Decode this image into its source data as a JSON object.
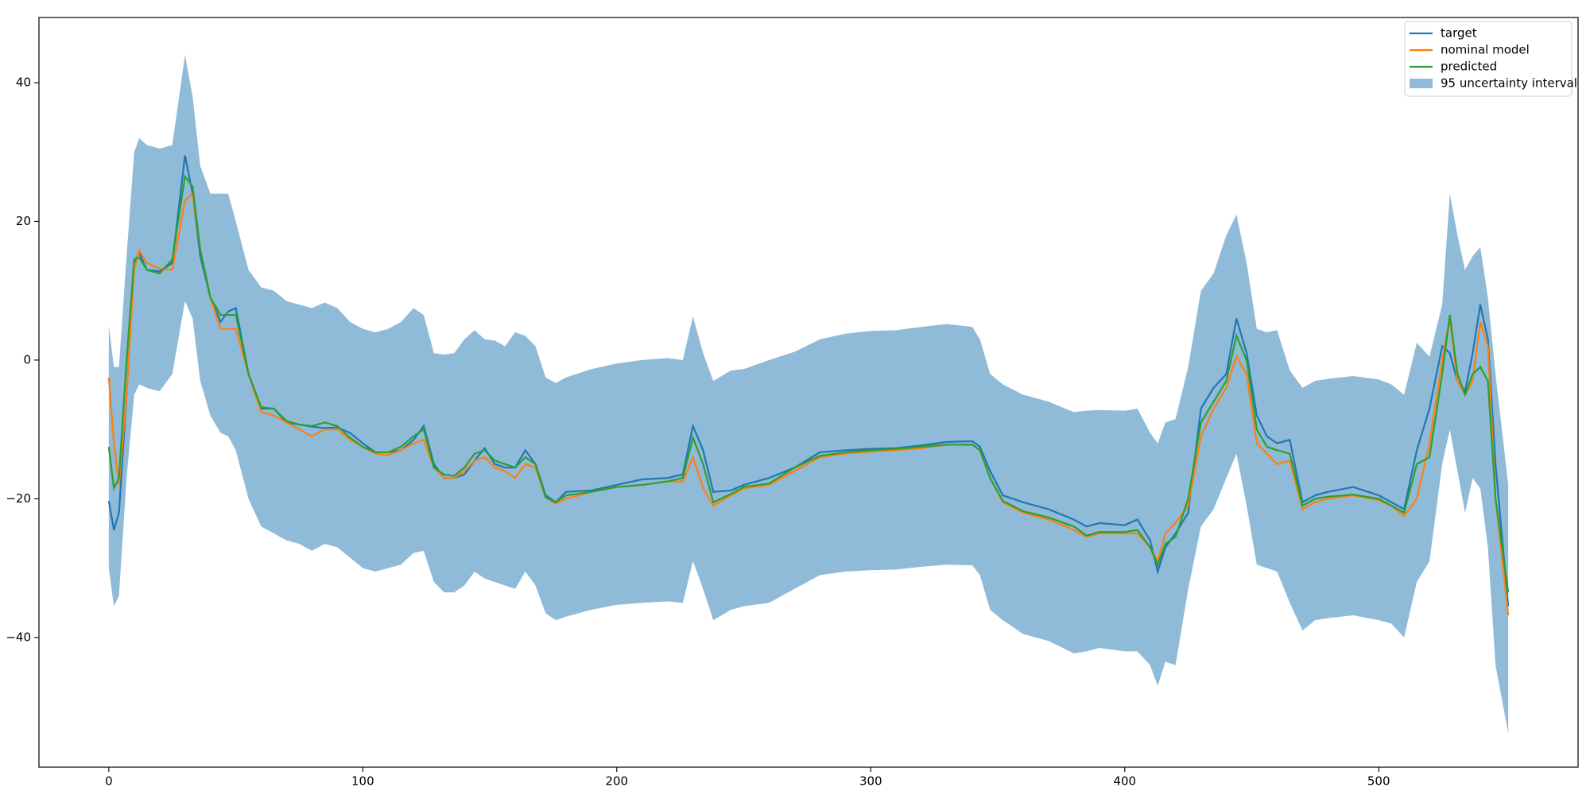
{
  "chart_data": {
    "type": "line",
    "x": [
      0,
      2,
      4,
      7,
      10,
      12,
      15,
      20,
      25,
      30,
      33,
      36,
      40,
      44,
      47,
      50,
      55,
      60,
      65,
      70,
      75,
      80,
      85,
      90,
      95,
      100,
      105,
      110,
      115,
      120,
      124,
      128,
      132,
      136,
      140,
      144,
      148,
      152,
      156,
      160,
      164,
      168,
      172,
      176,
      180,
      190,
      200,
      210,
      220,
      226,
      230,
      234,
      238,
      245,
      250,
      260,
      270,
      280,
      290,
      300,
      310,
      320,
      330,
      340,
      343,
      347,
      352,
      360,
      370,
      380,
      385,
      390,
      400,
      405,
      410,
      413,
      416,
      420,
      425,
      430,
      435,
      440,
      444,
      448,
      452,
      456,
      460,
      465,
      470,
      475,
      480,
      490,
      500,
      505,
      510,
      515,
      520,
      525,
      528,
      531,
      534,
      537,
      540,
      543,
      546,
      551
    ],
    "series": [
      {
        "name": "target",
        "color": "#1f77b4",
        "values": [
          -20.3,
          -24.5,
          -22,
          -5,
          14,
          15.5,
          13,
          12.8,
          14,
          29.5,
          24,
          15,
          9,
          5.5,
          7,
          7.5,
          -2,
          -7,
          -7,
          -9,
          -9.3,
          -9.6,
          -9.8,
          -9.7,
          -10.5,
          -12,
          -13.3,
          -13.3,
          -13,
          -11.5,
          -9.5,
          -15,
          -17,
          -17,
          -16.5,
          -14.5,
          -12.7,
          -15,
          -15.5,
          -15.5,
          -13,
          -15,
          -19.5,
          -20.5,
          -19,
          -18.8,
          -18,
          -17.2,
          -17,
          -16.5,
          -9.5,
          -13,
          -19,
          -18.8,
          -18,
          -17,
          -15.5,
          -13.3,
          -13,
          -12.8,
          -12.7,
          -12.3,
          -11.8,
          -11.7,
          -12.5,
          -16,
          -19.5,
          -20.5,
          -21.5,
          -23,
          -24,
          -23.5,
          -23.8,
          -23,
          -26,
          -30.5,
          -27,
          -25,
          -22,
          -7,
          -4,
          -2,
          6,
          1,
          -8,
          -11,
          -12,
          -11.5,
          -20.5,
          -19.5,
          -19,
          -18.3,
          -19.5,
          -20.5,
          -21.5,
          -13,
          -7,
          2,
          1,
          -3,
          -4.5,
          1,
          8,
          3,
          -15,
          -35.5
        ]
      },
      {
        "name": "nominal model",
        "color": "#ff7f0e",
        "values": [
          -2.5,
          -12,
          -18,
          -5,
          13,
          15.8,
          14,
          13.2,
          13,
          23,
          24,
          16,
          9,
          4.5,
          4.5,
          4.5,
          -2,
          -7.5,
          -8,
          -9,
          -10,
          -11,
          -10,
          -10,
          -11.5,
          -12.5,
          -13.5,
          -13.7,
          -13,
          -12,
          -11.5,
          -15.5,
          -17,
          -17,
          -16,
          -14.5,
          -14,
          -15.5,
          -16,
          -17,
          -15,
          -15.5,
          -19.8,
          -20.7,
          -20,
          -19,
          -18.3,
          -18,
          -17.5,
          -17.5,
          -14,
          -18.5,
          -21,
          -19.5,
          -18.5,
          -18,
          -16,
          -14,
          -13.5,
          -13.2,
          -13,
          -12.7,
          -12.2,
          -12.2,
          -13,
          -17,
          -20.5,
          -22,
          -23,
          -24.5,
          -25.5,
          -25,
          -25,
          -25,
          -27,
          -29,
          -25,
          -23.5,
          -21,
          -11,
          -7,
          -4,
          0.5,
          -2,
          -12,
          -13.5,
          -15,
          -14.5,
          -21.5,
          -20.5,
          -20,
          -19.5,
          -20.2,
          -21,
          -22.5,
          -20,
          -12,
          0,
          6,
          -3,
          -5,
          -3,
          5.5,
          2,
          -20,
          -36.8
        ]
      },
      {
        "name": "predicted",
        "color": "#2ca02c",
        "values": [
          -12.5,
          -18.5,
          -17,
          0,
          14.5,
          14.8,
          13,
          12.5,
          14.5,
          26.5,
          25,
          16,
          9,
          6.5,
          6.5,
          6.5,
          -2,
          -6.8,
          -7,
          -8.8,
          -9.3,
          -9.5,
          -9,
          -9.5,
          -11.2,
          -12.5,
          -13.3,
          -13.3,
          -12.5,
          -11,
          -10,
          -15.5,
          -16.5,
          -16.7,
          -15.5,
          -13.5,
          -13,
          -14.5,
          -15,
          -15.5,
          -14,
          -15,
          -19.8,
          -20.5,
          -19.5,
          -19,
          -18.3,
          -18,
          -17.5,
          -17,
          -11.2,
          -15,
          -20.5,
          -19.3,
          -18.3,
          -17.8,
          -15.5,
          -13.8,
          -13.3,
          -13,
          -12.8,
          -12.5,
          -12.2,
          -12.2,
          -13,
          -17,
          -20.3,
          -21.8,
          -22.7,
          -24,
          -25.3,
          -24.8,
          -24.8,
          -24.5,
          -27,
          -29.5,
          -26.5,
          -25.5,
          -20,
          -9,
          -6,
          -3,
          3.5,
          0,
          -10,
          -12.5,
          -13,
          -13.5,
          -21,
          -20,
          -19.7,
          -19.4,
          -20,
          -21,
          -22,
          -15,
          -14,
          -2,
          6.5,
          -2,
          -5,
          -2,
          -1,
          -3,
          -20,
          -33.5
        ]
      }
    ],
    "band": {
      "name": "95 uncertainty interval",
      "color": "#1f77b4",
      "alpha": 0.5,
      "lower": [
        -30,
        -35.5,
        -34,
        -17,
        -5,
        -3.5,
        -4,
        -4.5,
        -2,
        8.5,
        6,
        -3,
        -8,
        -10.5,
        -11,
        -13,
        -20,
        -24,
        -25,
        -26,
        -26.5,
        -27.5,
        -26.5,
        -27,
        -28.5,
        -30,
        -30.5,
        -30,
        -29.5,
        -27.8,
        -27.5,
        -32,
        -33.5,
        -33.5,
        -32.5,
        -30.5,
        -31.5,
        -32,
        -32.5,
        -33,
        -30.5,
        -32.5,
        -36.5,
        -37.5,
        -37,
        -36,
        -35.3,
        -35,
        -34.8,
        -35,
        -29,
        -33,
        -37.5,
        -36,
        -35.5,
        -35,
        -33,
        -31,
        -30.5,
        -30.3,
        -30.2,
        -29.8,
        -29.5,
        -29.6,
        -31,
        -36,
        -37.5,
        -39.5,
        -40.5,
        -42.3,
        -42,
        -41.5,
        -42,
        -42,
        -44,
        -47,
        -43.5,
        -44,
        -33,
        -24,
        -21.5,
        -17,
        -13.5,
        -21,
        -29.5,
        -30,
        -30.5,
        -35,
        -39,
        -37.5,
        -37.2,
        -36.8,
        -37.5,
        -38,
        -40,
        -32,
        -29,
        -15,
        -10,
        -16,
        -22,
        -17,
        -18.5,
        -27,
        -44,
        -53.8
      ],
      "upper": [
        5,
        -1,
        -1,
        15,
        30,
        32,
        31,
        30.5,
        31,
        44,
        38,
        28,
        24,
        24,
        24,
        20,
        13,
        10.5,
        10,
        8.5,
        8,
        7.5,
        8.3,
        7.5,
        5.5,
        4.5,
        4,
        4.5,
        5.5,
        7.5,
        6.5,
        1,
        0.8,
        1,
        3,
        4.3,
        3,
        2.8,
        2,
        4,
        3.5,
        2,
        -2.5,
        -3.3,
        -2.5,
        -1.3,
        -0.5,
        0,
        0.3,
        0,
        6.3,
        1,
        -3,
        -1.5,
        -1.3,
        0,
        1.2,
        3,
        3.8,
        4.2,
        4.3,
        4.8,
        5.2,
        4.8,
        3,
        -2,
        -3.5,
        -5,
        -6,
        -7.5,
        -7.3,
        -7.2,
        -7.3,
        -7,
        -10.5,
        -12,
        -9,
        -8.5,
        -1,
        10,
        12.5,
        18,
        21,
        14,
        4.5,
        4,
        4.3,
        -1.5,
        -4,
        -3,
        -2.7,
        -2.3,
        -2.8,
        -3.5,
        -5,
        2.5,
        0.5,
        8,
        24,
        18,
        13,
        15,
        16.3,
        9,
        -2,
        -18
      ]
    },
    "xlim": [
      -27.5,
      578.5
    ],
    "ylim": [
      -58.7,
      49.4
    ],
    "xticks": [
      0,
      100,
      200,
      300,
      400,
      500
    ],
    "yticks": [
      {
        "value": -40,
        "label": "−40"
      },
      {
        "value": -20,
        "label": "−20"
      },
      0,
      20,
      40
    ],
    "grid": false,
    "legend": "upper right"
  }
}
